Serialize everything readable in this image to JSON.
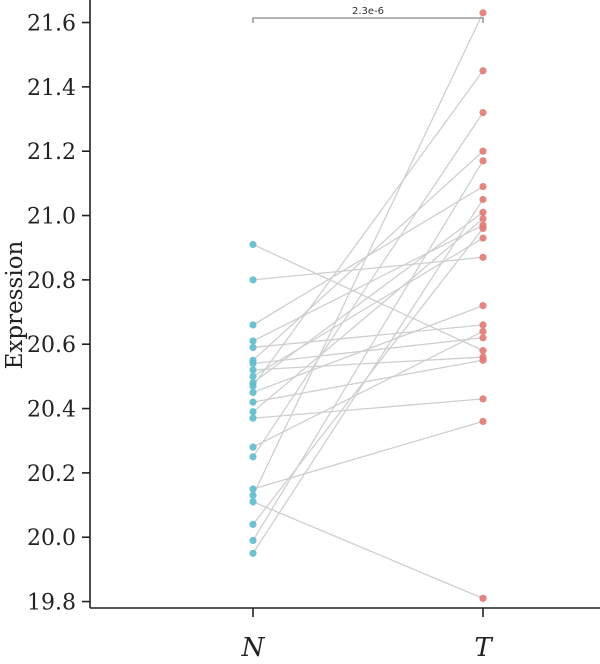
{
  "chart_data": {
    "type": "scatter",
    "subtype": "paired-dot",
    "ylabel": "Expression",
    "categories": [
      "N",
      "T"
    ],
    "ylim": [
      19.78,
      21.67
    ],
    "yticks": [
      19.8,
      20.0,
      20.2,
      20.4,
      20.6,
      20.8,
      21.0,
      21.2,
      21.4,
      21.6
    ],
    "ytick_labels": [
      "19.8",
      "20.0",
      "20.2",
      "20.4",
      "20.6",
      "20.8",
      "21.0",
      "21.2",
      "21.4",
      "21.6"
    ],
    "pvalue_label": "2.3e-6",
    "colors": {
      "N": "#5fbccc",
      "T": "#e07a72",
      "line": "#cfcfcf",
      "bracket": "#9a9a9a"
    },
    "grid": false,
    "pairs": [
      {
        "N": 20.91,
        "T": 20.58
      },
      {
        "N": 20.8,
        "T": 20.87
      },
      {
        "N": 20.66,
        "T": 21.09
      },
      {
        "N": 20.61,
        "T": 20.97
      },
      {
        "N": 20.59,
        "T": 20.66
      },
      {
        "N": 20.55,
        "T": 21.2
      },
      {
        "N": 20.54,
        "T": 20.62
      },
      {
        "N": 20.52,
        "T": 20.56
      },
      {
        "N": 20.5,
        "T": 20.93
      },
      {
        "N": 20.48,
        "T": 21.01
      },
      {
        "N": 20.47,
        "T": 21.45
      },
      {
        "N": 20.45,
        "T": 20.72
      },
      {
        "N": 20.42,
        "T": 20.55
      },
      {
        "N": 20.39,
        "T": 20.99
      },
      {
        "N": 20.37,
        "T": 20.43
      },
      {
        "N": 20.28,
        "T": 20.64
      },
      {
        "N": 20.25,
        "T": 21.32
      },
      {
        "N": 20.15,
        "T": 20.36
      },
      {
        "N": 20.13,
        "T": 21.63
      },
      {
        "N": 20.11,
        "T": 19.81
      },
      {
        "N": 20.04,
        "T": 20.96
      },
      {
        "N": 19.99,
        "T": 21.17
      },
      {
        "N": 19.95,
        "T": 21.05
      }
    ]
  }
}
